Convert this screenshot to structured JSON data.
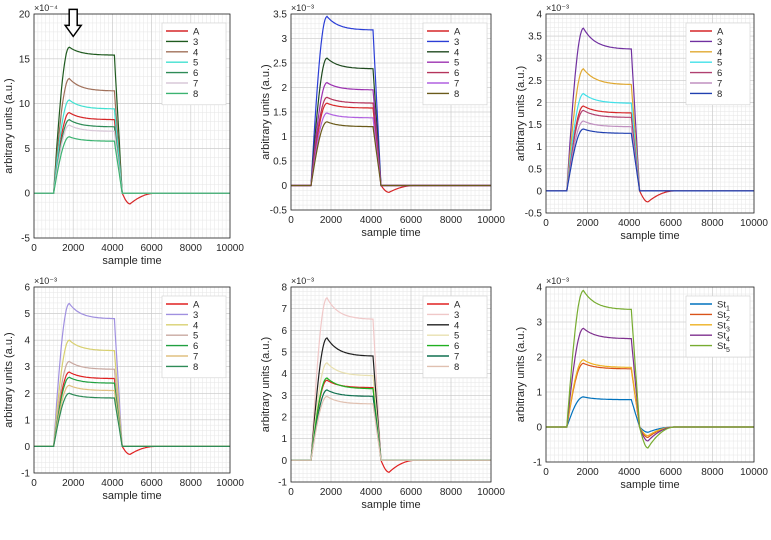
{
  "chart_data": [
    {
      "type": "line",
      "title": "",
      "xlabel": "sample time",
      "ylabel": "arbitrary units (a.u.)",
      "exponent_label": "×10⁻⁴",
      "xlim": [
        0,
        10000
      ],
      "ylim": [
        -5,
        20
      ],
      "xticks": [
        0,
        2000,
        4000,
        6000,
        8000,
        10000
      ],
      "xtick_labels": [
        "0",
        "2000",
        "4000",
        "6000",
        "8000",
        "10000"
      ],
      "yticks": [
        -5,
        0,
        5,
        10,
        15,
        20
      ],
      "ytick_labels": [
        "-5",
        "0",
        "5",
        "10",
        "15",
        "20"
      ],
      "grid": true,
      "legend_position": "top-right",
      "annotations": [
        {
          "type": "down-arrow",
          "x": 2000,
          "y": 17.5
        }
      ],
      "series": [
        {
          "name": "A",
          "color": "#d62728",
          "peak": 9.0,
          "plateau": 8.2,
          "undershoot": -1.2
        },
        {
          "name": "3",
          "color": "#1f5a1f",
          "peak": 16.3,
          "plateau": 15.4,
          "undershoot": 0
        },
        {
          "name": "4",
          "color": "#a0705a",
          "peak": 12.8,
          "plateau": 11.4,
          "undershoot": 0
        },
        {
          "name": "5",
          "color": "#40e0d0",
          "peak": 10.4,
          "plateau": 9.4,
          "undershoot": 0
        },
        {
          "name": "6",
          "color": "#2e8b57",
          "peak": 8.2,
          "plateau": 7.4,
          "undershoot": 0
        },
        {
          "name": "7",
          "color": "#d8c8d8",
          "peak": 7.6,
          "plateau": 6.9,
          "undershoot": 0
        },
        {
          "name": "8",
          "color": "#3cb371",
          "peak": 6.3,
          "plateau": 5.8,
          "undershoot": 0
        }
      ]
    },
    {
      "type": "line",
      "title": "",
      "xlabel": "sample time",
      "ylabel": "arbitrary units (a.u.)",
      "exponent_label": "×10⁻³",
      "xlim": [
        0,
        10000
      ],
      "ylim": [
        -0.5,
        3.5
      ],
      "xticks": [
        0,
        2000,
        4000,
        6000,
        8000,
        10000
      ],
      "xtick_labels": [
        "0",
        "2000",
        "4000",
        "6000",
        "8000",
        "10000"
      ],
      "yticks": [
        -0.5,
        0,
        0.5,
        1,
        1.5,
        2,
        2.5,
        3,
        3.5
      ],
      "ytick_labels": [
        "-0.5",
        "0",
        "0.5",
        "1",
        "1.5",
        "2",
        "2.5",
        "3",
        "3.5"
      ],
      "grid": true,
      "legend_position": "top-right",
      "series": [
        {
          "name": "A",
          "color": "#d62728",
          "peak": 1.68,
          "plateau": 1.58,
          "undershoot": -0.14
        },
        {
          "name": "3",
          "color": "#2b3ed6",
          "peak": 3.45,
          "plateau": 3.17,
          "undershoot": 0
        },
        {
          "name": "4",
          "color": "#1f4a1f",
          "peak": 2.6,
          "plateau": 2.38,
          "undershoot": 0
        },
        {
          "name": "5",
          "color": "#9b30b0",
          "peak": 2.1,
          "plateau": 1.95,
          "undershoot": 0
        },
        {
          "name": "6",
          "color": "#b5345c",
          "peak": 1.8,
          "plateau": 1.68,
          "undershoot": 0
        },
        {
          "name": "7",
          "color": "#b060e0",
          "peak": 1.48,
          "plateau": 1.38,
          "undershoot": 0
        },
        {
          "name": "8",
          "color": "#6a5a1a",
          "peak": 1.3,
          "plateau": 1.2,
          "undershoot": 0
        }
      ]
    },
    {
      "type": "line",
      "title": "",
      "xlabel": "sample time",
      "ylabel": "arbitrary units (a.u.)",
      "exponent_label": "×10⁻³",
      "xlim": [
        0,
        10000
      ],
      "ylim": [
        -0.5,
        4
      ],
      "xticks": [
        0,
        2000,
        4000,
        6000,
        8000,
        10000
      ],
      "xtick_labels": [
        "0",
        "2000",
        "4000",
        "6000",
        "8000",
        "10000"
      ],
      "yticks": [
        -0.5,
        0,
        0.5,
        1,
        1.5,
        2,
        2.5,
        3,
        3.5,
        4
      ],
      "ytick_labels": [
        "-0.5",
        "0",
        "0.5",
        "1",
        "1.5",
        "2",
        "2.5",
        "3",
        "3.5",
        "4"
      ],
      "grid": true,
      "legend_position": "top-right",
      "series": [
        {
          "name": "A",
          "color": "#d62728",
          "peak": 1.92,
          "plateau": 1.76,
          "undershoot": -0.25
        },
        {
          "name": "3",
          "color": "#7030a0",
          "peak": 3.68,
          "plateau": 3.2,
          "undershoot": 0
        },
        {
          "name": "4",
          "color": "#e0a830",
          "peak": 2.76,
          "plateau": 2.4,
          "undershoot": 0
        },
        {
          "name": "5",
          "color": "#40e0e8",
          "peak": 2.2,
          "plateau": 1.98,
          "undershoot": 0
        },
        {
          "name": "6",
          "color": "#b04070",
          "peak": 1.82,
          "plateau": 1.66,
          "undershoot": 0
        },
        {
          "name": "7",
          "color": "#c090c0",
          "peak": 1.58,
          "plateau": 1.45,
          "undershoot": 0
        },
        {
          "name": "8",
          "color": "#2040b0",
          "peak": 1.4,
          "plateau": 1.3,
          "undershoot": 0
        }
      ]
    },
    {
      "type": "line",
      "title": "",
      "xlabel": "sample time",
      "ylabel": "arbitrary units (a.u.)",
      "exponent_label": "×10⁻³",
      "xlim": [
        0,
        10000
      ],
      "ylim": [
        -1,
        6
      ],
      "xticks": [
        0,
        2000,
        4000,
        6000,
        8000,
        10000
      ],
      "xtick_labels": [
        "0",
        "2000",
        "4000",
        "6000",
        "8000",
        "10000"
      ],
      "yticks": [
        -1,
        0,
        1,
        2,
        3,
        4,
        5,
        6
      ],
      "ytick_labels": [
        "-1",
        "0",
        "1",
        "2",
        "3",
        "4",
        "5",
        "6"
      ],
      "grid": true,
      "legend_position": "top-right",
      "series": [
        {
          "name": "A",
          "color": "#e02020",
          "peak": 2.8,
          "plateau": 2.55,
          "undershoot": -0.3
        },
        {
          "name": "3",
          "color": "#a090e0",
          "peak": 5.38,
          "plateau": 4.8,
          "undershoot": 0
        },
        {
          "name": "4",
          "color": "#d8d070",
          "peak": 4.0,
          "plateau": 3.6,
          "undershoot": 0
        },
        {
          "name": "5",
          "color": "#c8a8a0",
          "peak": 3.2,
          "plateau": 2.9,
          "undershoot": 0
        },
        {
          "name": "6",
          "color": "#20a040",
          "peak": 2.6,
          "plateau": 2.38,
          "undershoot": 0
        },
        {
          "name": "7",
          "color": "#e0c080",
          "peak": 2.3,
          "plateau": 2.1,
          "undershoot": 0
        },
        {
          "name": "8",
          "color": "#2e8b57",
          "peak": 2.0,
          "plateau": 1.82,
          "undershoot": 0
        }
      ]
    },
    {
      "type": "line",
      "title": "",
      "xlabel": "sample time",
      "ylabel": "arbitrary units (a.u.)",
      "exponent_label": "×10⁻³",
      "xlim": [
        0,
        10000
      ],
      "ylim": [
        -1,
        8
      ],
      "xticks": [
        0,
        2000,
        4000,
        6000,
        8000,
        10000
      ],
      "xtick_labels": [
        "0",
        "2000",
        "4000",
        "6000",
        "8000",
        "10000"
      ],
      "yticks": [
        -1,
        0,
        1,
        2,
        3,
        4,
        5,
        6,
        7,
        8
      ],
      "ytick_labels": [
        "-1",
        "0",
        "1",
        "2",
        "3",
        "4",
        "5",
        "6",
        "7",
        "8"
      ],
      "grid": true,
      "legend_position": "top-right",
      "series": [
        {
          "name": "A",
          "color": "#e02020",
          "peak": 3.7,
          "plateau": 3.35,
          "undershoot": -0.55
        },
        {
          "name": "3",
          "color": "#f0c8c8",
          "peak": 7.5,
          "plateau": 6.5,
          "undershoot": 0
        },
        {
          "name": "4",
          "color": "#202020",
          "peak": 5.65,
          "plateau": 4.8,
          "undershoot": 0
        },
        {
          "name": "5",
          "color": "#e8e0b0",
          "peak": 4.5,
          "plateau": 3.9,
          "undershoot": 0
        },
        {
          "name": "6",
          "color": "#20b020",
          "peak": 3.8,
          "plateau": 3.3,
          "undershoot": 0
        },
        {
          "name": "7",
          "color": "#107050",
          "peak": 3.25,
          "plateau": 2.95,
          "undershoot": 0
        },
        {
          "name": "8",
          "color": "#e0c0b0",
          "peak": 2.95,
          "plateau": 2.6,
          "undershoot": 0
        }
      ]
    },
    {
      "type": "line",
      "title": "",
      "xlabel": "sample time",
      "ylabel": "arbitrary units (a.u.)",
      "exponent_label": "×10⁻³",
      "xlim": [
        0,
        10000
      ],
      "ylim": [
        -1,
        4
      ],
      "xticks": [
        0,
        2000,
        4000,
        6000,
        8000,
        10000
      ],
      "xtick_labels": [
        "0",
        "2000",
        "4000",
        "6000",
        "8000",
        "10000"
      ],
      "yticks": [
        -1,
        0,
        1,
        2,
        3,
        4
      ],
      "ytick_labels": [
        "-1",
        "0",
        "1",
        "2",
        "3",
        "4"
      ],
      "grid": true,
      "legend_position": "top-right",
      "series": [
        {
          "name": "St",
          "sub": "1",
          "color": "#0072bd",
          "peak": 0.86,
          "plateau": 0.78,
          "undershoot": -0.15
        },
        {
          "name": "St",
          "sub": "2",
          "color": "#d95319",
          "peak": 1.82,
          "plateau": 1.66,
          "undershoot": -0.3
        },
        {
          "name": "St",
          "sub": "3",
          "color": "#edb120",
          "peak": 1.92,
          "plateau": 1.7,
          "undershoot": -0.25
        },
        {
          "name": "St",
          "sub": "4",
          "color": "#7e2f8e",
          "peak": 2.82,
          "plateau": 2.52,
          "undershoot": -0.4
        },
        {
          "name": "St",
          "sub": "5",
          "color": "#77ac30",
          "peak": 3.9,
          "plateau": 3.35,
          "undershoot": -0.6
        }
      ]
    }
  ]
}
